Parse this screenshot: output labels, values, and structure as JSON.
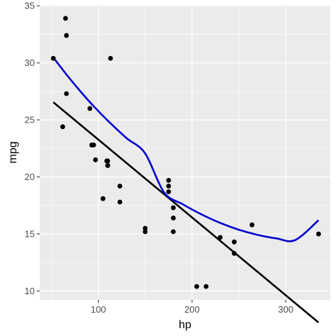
{
  "chart_data": {
    "type": "scatter",
    "xlabel": "hp",
    "ylabel": "mpg",
    "xlim": [
      37.45,
      347.55
    ],
    "ylim": [
      9.225,
      35.075
    ],
    "x_ticks": [
      100,
      200,
      300
    ],
    "x_minor_ticks": [
      50,
      150,
      250
    ],
    "y_ticks": [
      10,
      15,
      20,
      25,
      30,
      35
    ],
    "y_minor_ticks": [
      12.5,
      17.5,
      22.5,
      27.5,
      32.5
    ],
    "grid": true,
    "legend": "none",
    "colors": {
      "panel": "#ebebeb",
      "grid": "#ffffff",
      "points": "#000000",
      "linear_fit": "#000000",
      "quadratic_fit": "#0000cd",
      "tick_label": "#4d4d4d"
    },
    "points": [
      [
        110,
        21.0
      ],
      [
        110,
        21.0
      ],
      [
        93,
        22.8
      ],
      [
        110,
        21.4
      ],
      [
        175,
        18.7
      ],
      [
        105,
        18.1
      ],
      [
        245,
        14.3
      ],
      [
        62,
        24.4
      ],
      [
        95,
        22.8
      ],
      [
        123,
        19.2
      ],
      [
        123,
        17.8
      ],
      [
        180,
        16.4
      ],
      [
        180,
        17.3
      ],
      [
        180,
        15.2
      ],
      [
        205,
        10.4
      ],
      [
        215,
        10.4
      ],
      [
        230,
        14.7
      ],
      [
        66,
        32.4
      ],
      [
        52,
        30.4
      ],
      [
        65,
        33.9
      ],
      [
        97,
        21.5
      ],
      [
        150,
        15.5
      ],
      [
        150,
        15.2
      ],
      [
        245,
        13.3
      ],
      [
        175,
        19.2
      ],
      [
        66,
        27.3
      ],
      [
        91,
        26.0
      ],
      [
        113,
        30.4
      ],
      [
        264,
        15.8
      ],
      [
        175,
        19.7
      ],
      [
        335,
        15.0
      ],
      [
        109,
        21.4
      ]
    ],
    "series": [
      {
        "kind": "linear",
        "x": [
          52,
          335
        ],
        "y": [
          26.55,
          7.24
        ]
      },
      {
        "kind": "quadratic",
        "x": [
          52,
          70,
          90,
          110,
          130,
          150,
          170,
          190,
          210,
          230,
          250,
          270,
          290,
          310,
          335
        ],
        "y": [
          30.47,
          28.57,
          26.65,
          24.94,
          23.41,
          22.06,
          18.66,
          17.61,
          16.72,
          15.97,
          15.37,
          14.92,
          14.61,
          14.46,
          16.21
        ]
      }
    ]
  }
}
